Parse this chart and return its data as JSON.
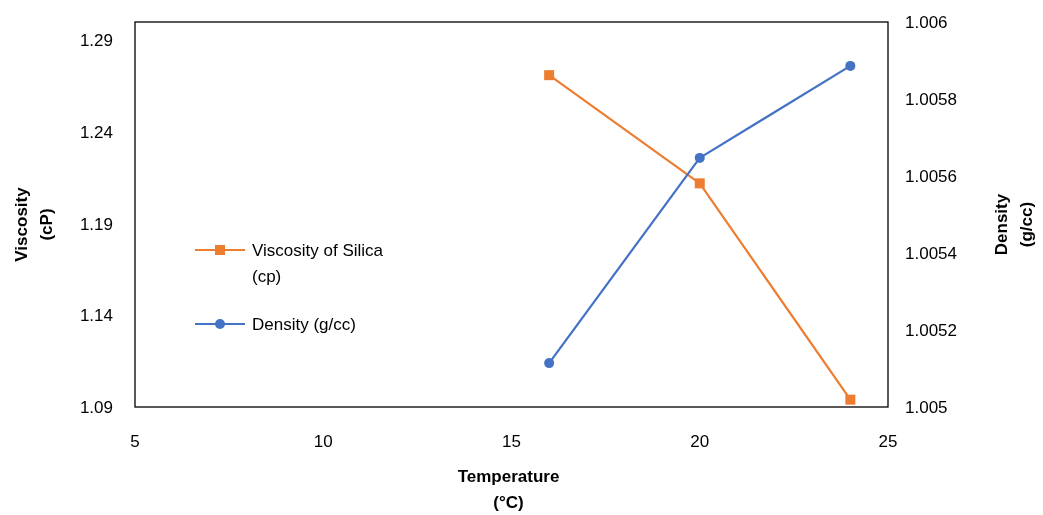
{
  "chart_data": {
    "type": "line",
    "xlabel": "Temperature (°C)",
    "ylabel": "Viscosity (cP)",
    "y2label": "Density (g/cc)",
    "xlim": [
      5,
      25
    ],
    "xticks": [
      5,
      10,
      15,
      20,
      25
    ],
    "ylim": [
      1.09,
      1.3
    ],
    "yticks": [
      1.09,
      1.14,
      1.19,
      1.24,
      1.29
    ],
    "y2lim": [
      1.005,
      1.006
    ],
    "y2ticks": [
      1.005,
      1.0052,
      1.0054,
      1.0056,
      1.0058,
      1.006
    ],
    "grid": false,
    "legend": "left",
    "series": [
      {
        "name": "Viscosity of Silica (cp)",
        "color": "#ed7d31",
        "marker": "square",
        "x": [
          16,
          20,
          24
        ],
        "values": [
          1.271,
          1.212,
          1.094
        ]
      },
      {
        "name": "Density (g/cc)",
        "color": "#4472c4",
        "marker": "circle",
        "axis": "y2",
        "x": [
          16,
          20,
          24
        ],
        "values": [
          1.005114,
          1.005647,
          1.005886
        ]
      }
    ]
  }
}
